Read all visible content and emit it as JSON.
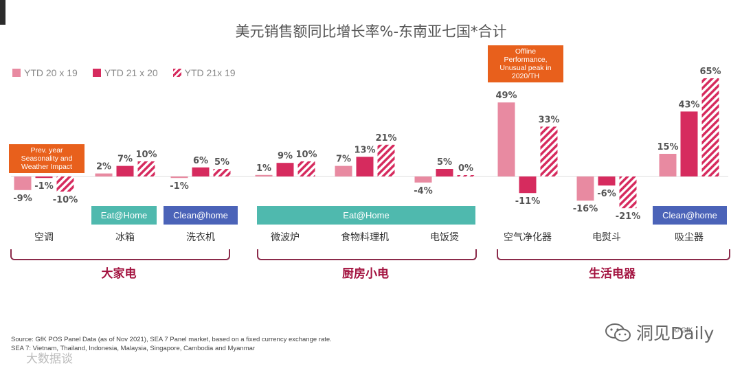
{
  "chart_data": {
    "type": "bar",
    "title": "美元销售额同比增长率%-东南亚七国*合计",
    "categories": [
      "空调",
      "冰箱",
      "洗衣机",
      "微波炉",
      "食物料理机",
      "电饭煲",
      "空气净化器",
      "电熨斗",
      "吸尘器"
    ],
    "series": [
      {
        "name": "YTD 20 x 19",
        "style": "light",
        "values": [
          -9,
          2,
          -1,
          1,
          7,
          -4,
          49,
          -16,
          15
        ],
        "labels": [
          "-9%",
          "2%",
          "-1%",
          "1%",
          "7%",
          "-4%",
          "49%",
          "-16%",
          "15%"
        ]
      },
      {
        "name": "YTD 21 x 20",
        "style": "dark",
        "values": [
          -1,
          7,
          6,
          9,
          13,
          5,
          -11,
          -6,
          43
        ],
        "labels": [
          "-1%",
          "7%",
          "6%",
          "9%",
          "13%",
          "5%",
          "-11%",
          "-6%",
          "43%"
        ]
      },
      {
        "name": "YTD 21x 19",
        "style": "hatch",
        "values": [
          -10,
          10,
          5,
          10,
          21,
          0,
          33,
          -21,
          65
        ],
        "labels": [
          "-10%",
          "10%",
          "5%",
          "10%",
          "21%",
          "0%",
          "33%",
          "-21%",
          "65%"
        ]
      }
    ],
    "ylim": [
      -25,
      70
    ],
    "legend_position": "top-left",
    "groups": [
      "大家电",
      "厨房小电",
      "生活电器"
    ],
    "annotations": {
      "callout_ac": "Prev. year Seasonality and Weather Impact",
      "callout_air": "Offline Performance, Unusual peak in 2020/TH"
    },
    "tags": {
      "fridge": "Eat@Home",
      "washer": "Clean@home",
      "kitchen": "Eat@Home",
      "vacuum": "Clean@home"
    }
  },
  "legend": [
    "YTD 20 x 19",
    "YTD 21 x 20",
    "YTD 21x 19"
  ],
  "callout_ac_lines": [
    "Prev. year",
    "Seasonality and",
    "Weather Impact"
  ],
  "callout_air_lines": [
    "Offline",
    "Performance,",
    "Unusual peak in",
    "2020/TH"
  ],
  "footer": {
    "copyright": "© GfK",
    "source_line1": "Source: GfK POS Panel Data (as of Nov 2021), SEA 7 Panel market, based on a fixed currency exchange rate.",
    "source_line2": "SEA 7: Vietnam, Thailand, Indonesia, Malaysia, Singapore, Cambodia and Myanmar"
  },
  "watermark": "洞见Daily",
  "watermark2": "大数据谈",
  "colors": {
    "light": "#e88aa1",
    "dark": "#d62b5e",
    "teal": "#4fb9ae",
    "blue": "#4b63b8",
    "orange": "#e8601c",
    "group": "#a3123f"
  }
}
